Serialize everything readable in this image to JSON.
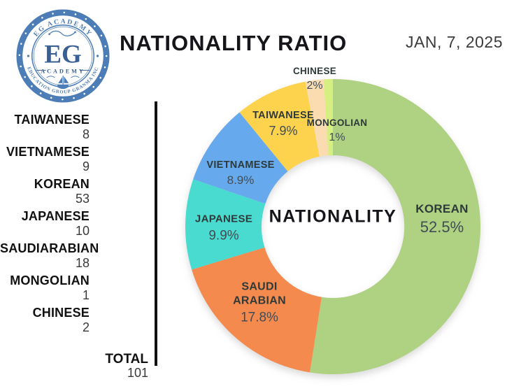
{
  "logo": {
    "arc_top": "EG ACADEMY",
    "arc_bottom": "EDUCATION GROUP GRANMA INC",
    "monogram": "EG",
    "word": "ACADEMY",
    "color": "#4c7db6",
    "monogram_color": "#3a5f93"
  },
  "header": {
    "title": "NATIONALITY RATIO",
    "date": "JAN, 7, 2025"
  },
  "summary": {
    "items": [
      {
        "label": "TAIWANESE",
        "count": "8"
      },
      {
        "label": "VIETNAMESE",
        "count": "9"
      },
      {
        "label": "KOREAN",
        "count": "53"
      },
      {
        "label": "JAPANESE",
        "count": "10"
      },
      {
        "label": "SAUDIARABIAN",
        "count": "18"
      },
      {
        "label": "MONGOLIAN",
        "count": "1"
      },
      {
        "label": "CHINESE",
        "count": "2"
      }
    ],
    "total_label": "TOTAL",
    "total_count": "101"
  },
  "chart_data": {
    "type": "pie",
    "subtype": "donut",
    "title": "NATIONALITY RATIO",
    "center_label": "NATIONALITY",
    "start_angle": "top",
    "direction": "clockwise",
    "hole_ratio": 0.48,
    "categories": [
      "KOREAN",
      "SAUDI ARABIAN",
      "JAPANESE",
      "VIETNAMESE",
      "TAIWANESE",
      "CHINESE",
      "MONGOLIAN"
    ],
    "values": [
      52.5,
      17.8,
      9.9,
      8.9,
      7.9,
      2,
      1
    ],
    "labels": [
      "52.5%",
      "17.8%",
      "9.9%",
      "8.9%",
      "7.9%",
      "2%",
      "1%"
    ],
    "counts": [
      53,
      18,
      10,
      9,
      8,
      2,
      1
    ],
    "colors": [
      "#aed182",
      "#f58a4e",
      "#49dbd0",
      "#66a9ec",
      "#fdd34e",
      "#fbdcb1",
      "#d6ef80"
    ]
  }
}
